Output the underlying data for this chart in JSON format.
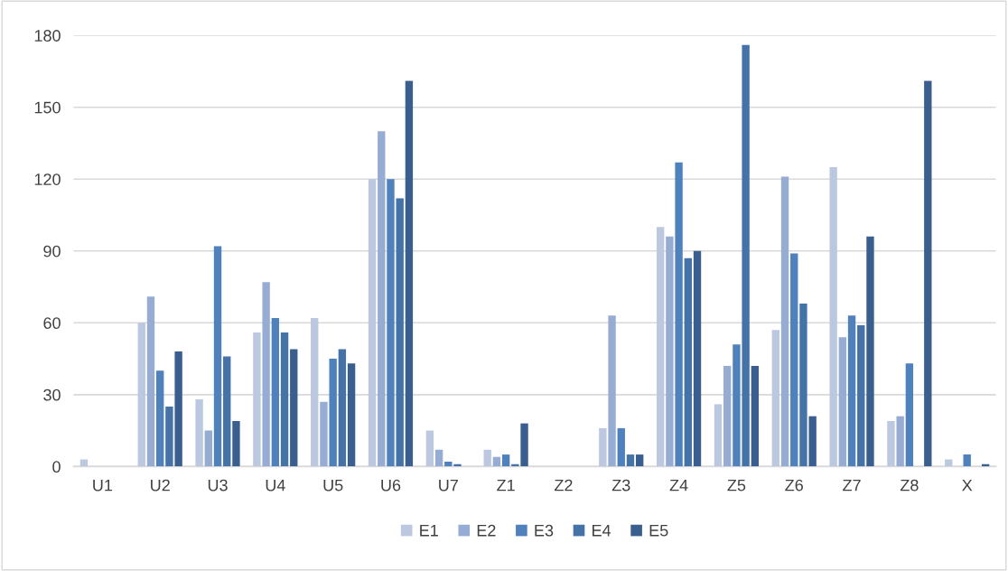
{
  "chart_data": {
    "type": "bar",
    "categories": [
      "U1",
      "U2",
      "U3",
      "U4",
      "U5",
      "U6",
      "U7",
      "Z1",
      "Z2",
      "Z3",
      "Z4",
      "Z5",
      "Z6",
      "Z7",
      "Z8",
      "X"
    ],
    "series": [
      {
        "name": "E1",
        "color": "#bcc8e0",
        "values": [
          3,
          60,
          28,
          56,
          62,
          120,
          15,
          7,
          0,
          16,
          100,
          26,
          57,
          125,
          19,
          3
        ]
      },
      {
        "name": "E2",
        "color": "#97acd3",
        "values": [
          0,
          71,
          15,
          77,
          27,
          140,
          7,
          4,
          0,
          63,
          96,
          42,
          121,
          54,
          21,
          0
        ]
      },
      {
        "name": "E3",
        "color": "#4f81bd",
        "values": [
          0,
          40,
          92,
          62,
          45,
          120,
          2,
          5,
          0,
          16,
          127,
          51,
          89,
          63,
          43,
          5
        ]
      },
      {
        "name": "E4",
        "color": "#4572a7",
        "values": [
          0,
          25,
          46,
          56,
          49,
          112,
          1,
          1,
          0,
          5,
          87,
          176,
          68,
          59,
          0,
          0
        ]
      },
      {
        "name": "E5",
        "color": "#3a5f8f",
        "values": [
          0,
          48,
          19,
          49,
          43,
          161,
          0,
          18,
          0,
          5,
          90,
          42,
          21,
          96,
          161,
          1
        ]
      }
    ],
    "ylim": [
      0,
      180
    ],
    "yticks": [
      0,
      30,
      60,
      90,
      120,
      150,
      180
    ],
    "grid": "y",
    "legend": "bottom"
  }
}
